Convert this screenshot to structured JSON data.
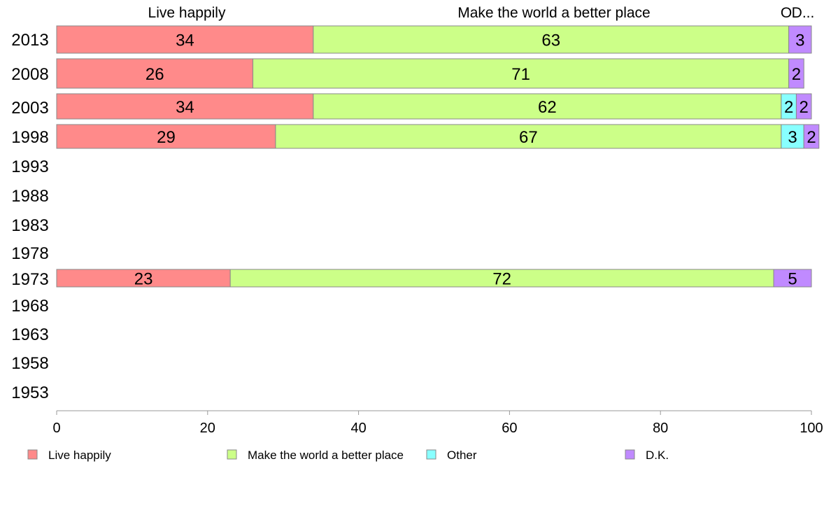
{
  "chart_data": {
    "type": "bar",
    "orientation": "horizontal",
    "stacked": true,
    "categories": [
      "2013",
      "2008",
      "2003",
      "1998",
      "1993",
      "1988",
      "1983",
      "1978",
      "1973",
      "1968",
      "1963",
      "1958",
      "1953"
    ],
    "series": [
      {
        "name": "Live happily",
        "color": "#ff8a8a",
        "values": [
          34,
          26,
          34,
          29,
          null,
          null,
          null,
          null,
          23,
          null,
          null,
          null,
          null
        ]
      },
      {
        "name": "Make the world a better place",
        "color": "#ccff88",
        "values": [
          63,
          71,
          62,
          67,
          null,
          null,
          null,
          null,
          72,
          null,
          null,
          null,
          null
        ]
      },
      {
        "name": "Other",
        "color": "#88ffff",
        "values": [
          0,
          0,
          2,
          3,
          null,
          null,
          null,
          null,
          0,
          null,
          null,
          null,
          null
        ]
      },
      {
        "name": "D.K.",
        "color": "#c08aff",
        "values": [
          3,
          2,
          2,
          2,
          null,
          null,
          null,
          null,
          5,
          null,
          null,
          null,
          null
        ]
      }
    ],
    "xlim": [
      0,
      100
    ],
    "x_ticks": [
      0,
      20,
      40,
      60,
      80,
      100
    ],
    "column_labels": [
      "Live happily",
      "Make the world a better place",
      "O",
      "D..."
    ],
    "legend": {
      "position": "bottom",
      "entries": [
        "Live happily",
        "Make the world a better place",
        "Other",
        "D.K."
      ]
    },
    "grid": false
  }
}
